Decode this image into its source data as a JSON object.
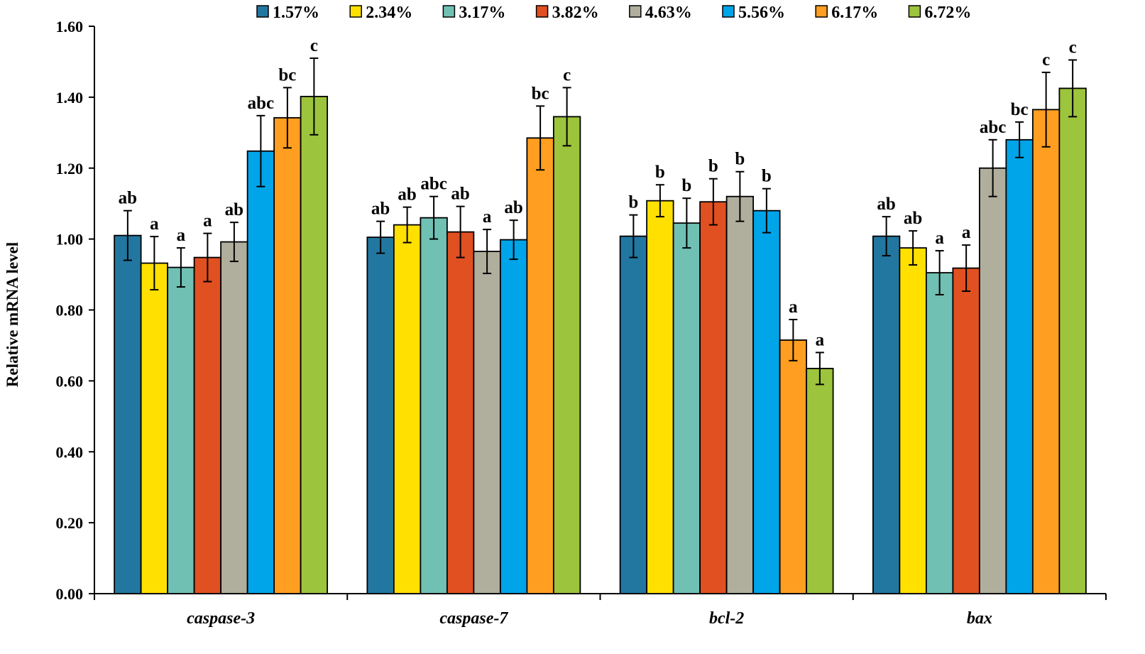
{
  "chart_data": {
    "type": "bar",
    "ylabel": "Relative mRNA level",
    "ylim": [
      0,
      1.6
    ],
    "yticks": [
      "0.00",
      "0.20",
      "0.40",
      "0.60",
      "0.80",
      "1.00",
      "1.20",
      "1.40",
      "1.60"
    ],
    "grid": false,
    "legend_position": "top",
    "categories": [
      "caspase-3",
      "caspase-7",
      "bcl-2",
      "bax"
    ],
    "series": [
      {
        "name": "1.57%",
        "color": "#2277A0",
        "values": [
          1.01,
          1.005,
          1.008,
          1.008
        ],
        "errors": [
          0.07,
          0.045,
          0.06,
          0.055
        ],
        "labels": [
          "ab",
          "ab",
          "b",
          "ab"
        ]
      },
      {
        "name": "2.34%",
        "color": "#FFE000",
        "values": [
          0.932,
          1.04,
          1.108,
          0.975
        ],
        "errors": [
          0.075,
          0.05,
          0.045,
          0.048
        ],
        "labels": [
          "a",
          "ab",
          "b",
          "ab"
        ]
      },
      {
        "name": "3.17%",
        "color": "#70C0B4",
        "values": [
          0.92,
          1.06,
          1.045,
          0.905
        ],
        "errors": [
          0.055,
          0.06,
          0.07,
          0.062
        ],
        "labels": [
          "a",
          "abc",
          "b",
          "a"
        ]
      },
      {
        "name": "3.82%",
        "color": "#E05020",
        "values": [
          0.948,
          1.02,
          1.105,
          0.918
        ],
        "errors": [
          0.068,
          0.072,
          0.065,
          0.065
        ],
        "labels": [
          "a",
          "ab",
          "b",
          "a"
        ]
      },
      {
        "name": "4.63%",
        "color": "#B0AE9C",
        "values": [
          0.992,
          0.965,
          1.12,
          1.2
        ],
        "errors": [
          0.055,
          0.062,
          0.07,
          0.08
        ],
        "labels": [
          "ab",
          "a",
          "b",
          "abc"
        ]
      },
      {
        "name": "5.56%",
        "color": "#00A4E8",
        "values": [
          1.248,
          0.998,
          1.08,
          1.28
        ],
        "errors": [
          0.1,
          0.055,
          0.062,
          0.05
        ],
        "labels": [
          "abc",
          "ab",
          "b",
          "bc"
        ]
      },
      {
        "name": "6.17%",
        "color": "#FF9E20",
        "values": [
          1.342,
          1.285,
          0.715,
          1.365
        ],
        "errors": [
          0.085,
          0.09,
          0.058,
          0.105
        ],
        "labels": [
          "bc",
          "bc",
          "a",
          "c"
        ]
      },
      {
        "name": "6.72%",
        "color": "#9CC43C",
        "values": [
          1.402,
          1.345,
          0.635,
          1.425
        ],
        "errors": [
          0.108,
          0.082,
          0.045,
          0.08
        ],
        "labels": [
          "c",
          "c",
          "a",
          "c"
        ]
      }
    ]
  }
}
